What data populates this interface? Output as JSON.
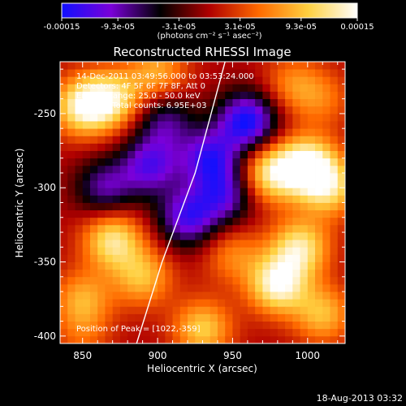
{
  "chart_data": {
    "type": "heatmap",
    "title": "Reconstructed RHESSI Image",
    "xlabel": "Heliocentric X (arcsec)",
    "ylabel": "Heliocentric Y (arcsec)",
    "xlim": [
      835,
      1025
    ],
    "ylim": [
      -405,
      -215
    ],
    "x_ticks": [
      "850",
      "900",
      "950",
      "1000"
    ],
    "y_ticks": [
      "-250",
      "-300",
      "-350",
      "-400"
    ],
    "colorbar": {
      "range": [
        -0.00015,
        0.00015
      ],
      "tick_labels": [
        "-0.00015",
        "-9.3e-05",
        "-3.1e-05",
        "3.1e-05",
        "9.3e-05",
        "0.00015"
      ],
      "units": "(photons cm⁻² s⁻¹ asec⁻²)",
      "colormap": [
        "#1010ff",
        "#7a00d8",
        "#000000",
        "#b00000",
        "#ff6a00",
        "#ffd040",
        "#ffffff"
      ]
    },
    "annotations": [
      "14-Dec-2011 03:49:56.000 to 03:53:24.000",
      "Detectors: 4F 5F 6F 7F 8F, Att 0",
      "Energy Range: 25.0 - 50.0 keV",
      "Clean     Total counts: 6.95E+03"
    ],
    "peak_label": "Position of Peak = [1022,-359]",
    "limb": [
      [
        945,
        -215
      ],
      [
        925,
        -290
      ],
      [
        903,
        -350
      ],
      [
        886,
        -405
      ]
    ],
    "blobs": [
      {
        "x": 850,
        "y": -245,
        "v": 0.00013
      },
      {
        "x": 900,
        "y": -222,
        "v": 8e-05
      },
      {
        "x": 870,
        "y": -240,
        "v": 0.00011
      },
      {
        "x": 1000,
        "y": -285,
        "v": 0.00015
      },
      {
        "x": 975,
        "y": -290,
        "v": 0.00012
      },
      {
        "x": 1015,
        "y": -300,
        "v": 0.0001
      },
      {
        "x": 995,
        "y": -340,
        "v": 0.00012
      },
      {
        "x": 980,
        "y": -365,
        "v": 0.00014
      },
      {
        "x": 1010,
        "y": -385,
        "v": 9e-05
      },
      {
        "x": 870,
        "y": -335,
        "v": 0.00012
      },
      {
        "x": 890,
        "y": -360,
        "v": 9e-05
      },
      {
        "x": 850,
        "y": -375,
        "v": 8e-05
      },
      {
        "x": 930,
        "y": -395,
        "v": 0.0001
      },
      {
        "x": 950,
        "y": -345,
        "v": 6e-05
      },
      {
        "x": 960,
        "y": -255,
        "v": -0.00015
      },
      {
        "x": 935,
        "y": -280,
        "v": -0.00012
      },
      {
        "x": 895,
        "y": -285,
        "v": -0.00011
      },
      {
        "x": 920,
        "y": -320,
        "v": -0.00012
      },
      {
        "x": 945,
        "y": -305,
        "v": -0.0001
      },
      {
        "x": 865,
        "y": -300,
        "v": -9e-05
      },
      {
        "x": 905,
        "y": -255,
        "v": -8e-05
      },
      {
        "x": 990,
        "y": -230,
        "v": 6e-05
      },
      {
        "x": 1010,
        "y": -240,
        "v": 5e-05
      },
      {
        "x": 850,
        "y": -400,
        "v": 4e-05
      }
    ]
  },
  "footer_date": "18-Aug-2013 03:32"
}
